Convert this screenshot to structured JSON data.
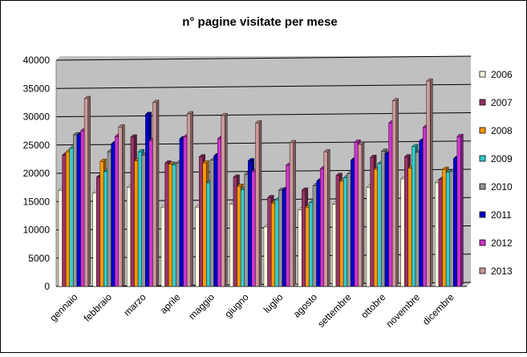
{
  "chart_data": {
    "type": "bar",
    "title": "n° pagine visitate per mese",
    "xlabel": "",
    "ylabel": "",
    "ylim": [
      0,
      40000
    ],
    "yticks": [
      0,
      5000,
      10000,
      15000,
      20000,
      25000,
      30000,
      35000,
      40000
    ],
    "grid": true,
    "legend_position": "right",
    "plot_background": "#c0c0c0",
    "categories": [
      "gennaio",
      "febbraio",
      "marzo",
      "aprile",
      "maggio",
      "giugno",
      "luglio",
      "agosto",
      "settembre",
      "ottobre",
      "novembre",
      "dicembre"
    ],
    "series": [
      {
        "name": "2006",
        "color": "#ffffe0",
        "values": [
          17000,
          16500,
          17500,
          14000,
          14000,
          14500,
          10500,
          13500,
          14500,
          17500,
          19000,
          18300
        ]
      },
      {
        "name": "2007",
        "color": "#993366",
        "values": [
          23200,
          19300,
          26400,
          21800,
          22900,
          19300,
          15700,
          17000,
          19600,
          22800,
          22900,
          18900
        ]
      },
      {
        "name": "2008",
        "color": "#ff9900",
        "values": [
          23800,
          22100,
          22200,
          21600,
          21800,
          17700,
          14700,
          14000,
          18600,
          20700,
          20900,
          20700
        ]
      },
      {
        "name": "2009",
        "color": "#33cccc",
        "values": [
          24400,
          20300,
          23800,
          21500,
          18300,
          17100,
          15300,
          14800,
          19200,
          21700,
          24700,
          20200
        ]
      },
      {
        "name": "2010",
        "color": "#969696",
        "values": [
          26800,
          23800,
          23200,
          21800,
          22300,
          19800,
          17000,
          17800,
          19900,
          23900,
          23700,
          20300
        ]
      },
      {
        "name": "2011",
        "color": "#0000cc",
        "values": [
          26800,
          25200,
          30400,
          26100,
          23100,
          22200,
          17100,
          18600,
          22300,
          23400,
          25700,
          22600
        ]
      },
      {
        "name": "2012",
        "color": "#cc33cc",
        "values": [
          27500,
          26500,
          25800,
          26400,
          26100,
          20300,
          21400,
          20800,
          25500,
          28900,
          28100,
          26500
        ]
      },
      {
        "name": "2013",
        "color": "#cc9999",
        "values": [
          33200,
          28200,
          32500,
          30500,
          30200,
          28900,
          25400,
          23800,
          25100,
          32800,
          36300,
          null
        ]
      }
    ]
  }
}
